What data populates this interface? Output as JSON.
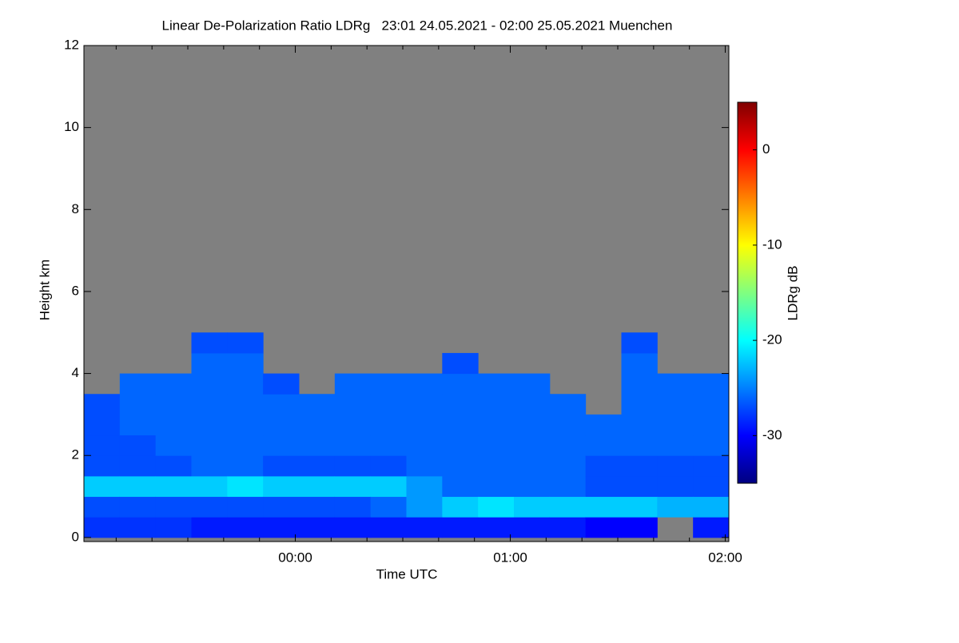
{
  "chart_data": {
    "type": "heatmap",
    "title": "Linear De-Polarization Ratio LDRg   23:01 24.05.2021 - 02:00 25.05.2021 Muenchen",
    "x_label": "Time UTC",
    "y_label": "Height km",
    "colorbar_label": "LDRg dB",
    "colormap": "jet",
    "nodata_color": "#808080",
    "xlim": [
      -59,
      121
    ],
    "ylim": [
      -0.1,
      12
    ],
    "zlim": [
      -35,
      5
    ],
    "xticks": [
      {
        "value": 0,
        "label": "00:00"
      },
      {
        "value": 60,
        "label": "01:00"
      },
      {
        "value": 120,
        "label": "02:00"
      }
    ],
    "xminorticks": [
      -50,
      -40,
      -30,
      -20,
      -10,
      10,
      20,
      30,
      40,
      50,
      70,
      80,
      90,
      100,
      110
    ],
    "yticks": [
      0,
      2,
      4,
      6,
      8,
      10,
      12
    ],
    "zticks": [
      0,
      -10,
      -20,
      -30
    ],
    "x_edges": [
      -59,
      -49,
      -39,
      -29,
      -19,
      -9,
      1,
      11,
      21,
      31,
      41,
      51,
      61,
      71,
      81,
      91,
      101,
      111,
      121
    ],
    "y_edges": [
      0,
      0.5,
      1,
      1.5,
      2,
      2.5,
      3,
      3.5,
      4,
      4.5,
      5,
      5.5,
      6
    ],
    "z": [
      [
        -28,
        -27,
        -22,
        -27,
        -27,
        -27,
        -27,
        null,
        null,
        null,
        null,
        null
      ],
      [
        -28,
        -27,
        -22,
        -27,
        -27,
        -26,
        -26,
        -26,
        null,
        null,
        null,
        null
      ],
      [
        -28,
        -27,
        -22,
        -27,
        -26,
        -26,
        -26,
        -26,
        null,
        null,
        null,
        null
      ],
      [
        -29,
        -27,
        -22,
        -26,
        -26,
        -26,
        -26,
        -26,
        -26,
        -27,
        null,
        null
      ],
      [
        -29,
        -27,
        -21,
        -26,
        -26,
        -26,
        -26,
        -26,
        -26,
        -27,
        null,
        null
      ],
      [
        -29,
        -27,
        -22,
        -27,
        -26,
        -26,
        -26,
        -27,
        null,
        null,
        null,
        null
      ],
      [
        -29,
        -27,
        -22,
        -27,
        -26,
        -26,
        -26,
        null,
        null,
        null,
        null,
        null
      ],
      [
        -29,
        -27,
        -22,
        -27,
        -26,
        -26,
        -26,
        -26,
        null,
        null,
        null,
        null
      ],
      [
        -29,
        -26,
        -22,
        -27,
        -26,
        -26,
        -26,
        -26,
        null,
        null,
        null,
        null
      ],
      [
        -29,
        -24,
        -24,
        -26,
        -26,
        -26,
        -26,
        -26,
        null,
        null,
        null,
        null
      ],
      [
        -29,
        -22,
        -26,
        -26,
        -26,
        -26,
        -26,
        -26,
        -27,
        null,
        null,
        null
      ],
      [
        -29,
        -21,
        -26,
        -26,
        -26,
        -26,
        -26,
        -26,
        null,
        null,
        null,
        null
      ],
      [
        -29,
        -22,
        -26,
        -26,
        -26,
        -26,
        -26,
        -26,
        null,
        null,
        null,
        null
      ],
      [
        -29,
        -22,
        -26,
        -26,
        -26,
        -26,
        -26,
        null,
        null,
        null,
        null,
        null
      ],
      [
        -30,
        -22,
        -27,
        -27,
        -26,
        -26,
        null,
        null,
        null,
        null,
        null,
        null
      ],
      [
        -30,
        -22,
        -27,
        -27,
        -26,
        -26,
        -26,
        -26,
        -26,
        -27,
        null,
        null
      ],
      [
        null,
        -23,
        -27,
        -27,
        -26,
        -26,
        -26,
        -26,
        null,
        null,
        null,
        null
      ],
      [
        -29,
        -23,
        -27,
        -27,
        -26,
        -26,
        -26,
        -26,
        null,
        null,
        null,
        null
      ]
    ]
  }
}
